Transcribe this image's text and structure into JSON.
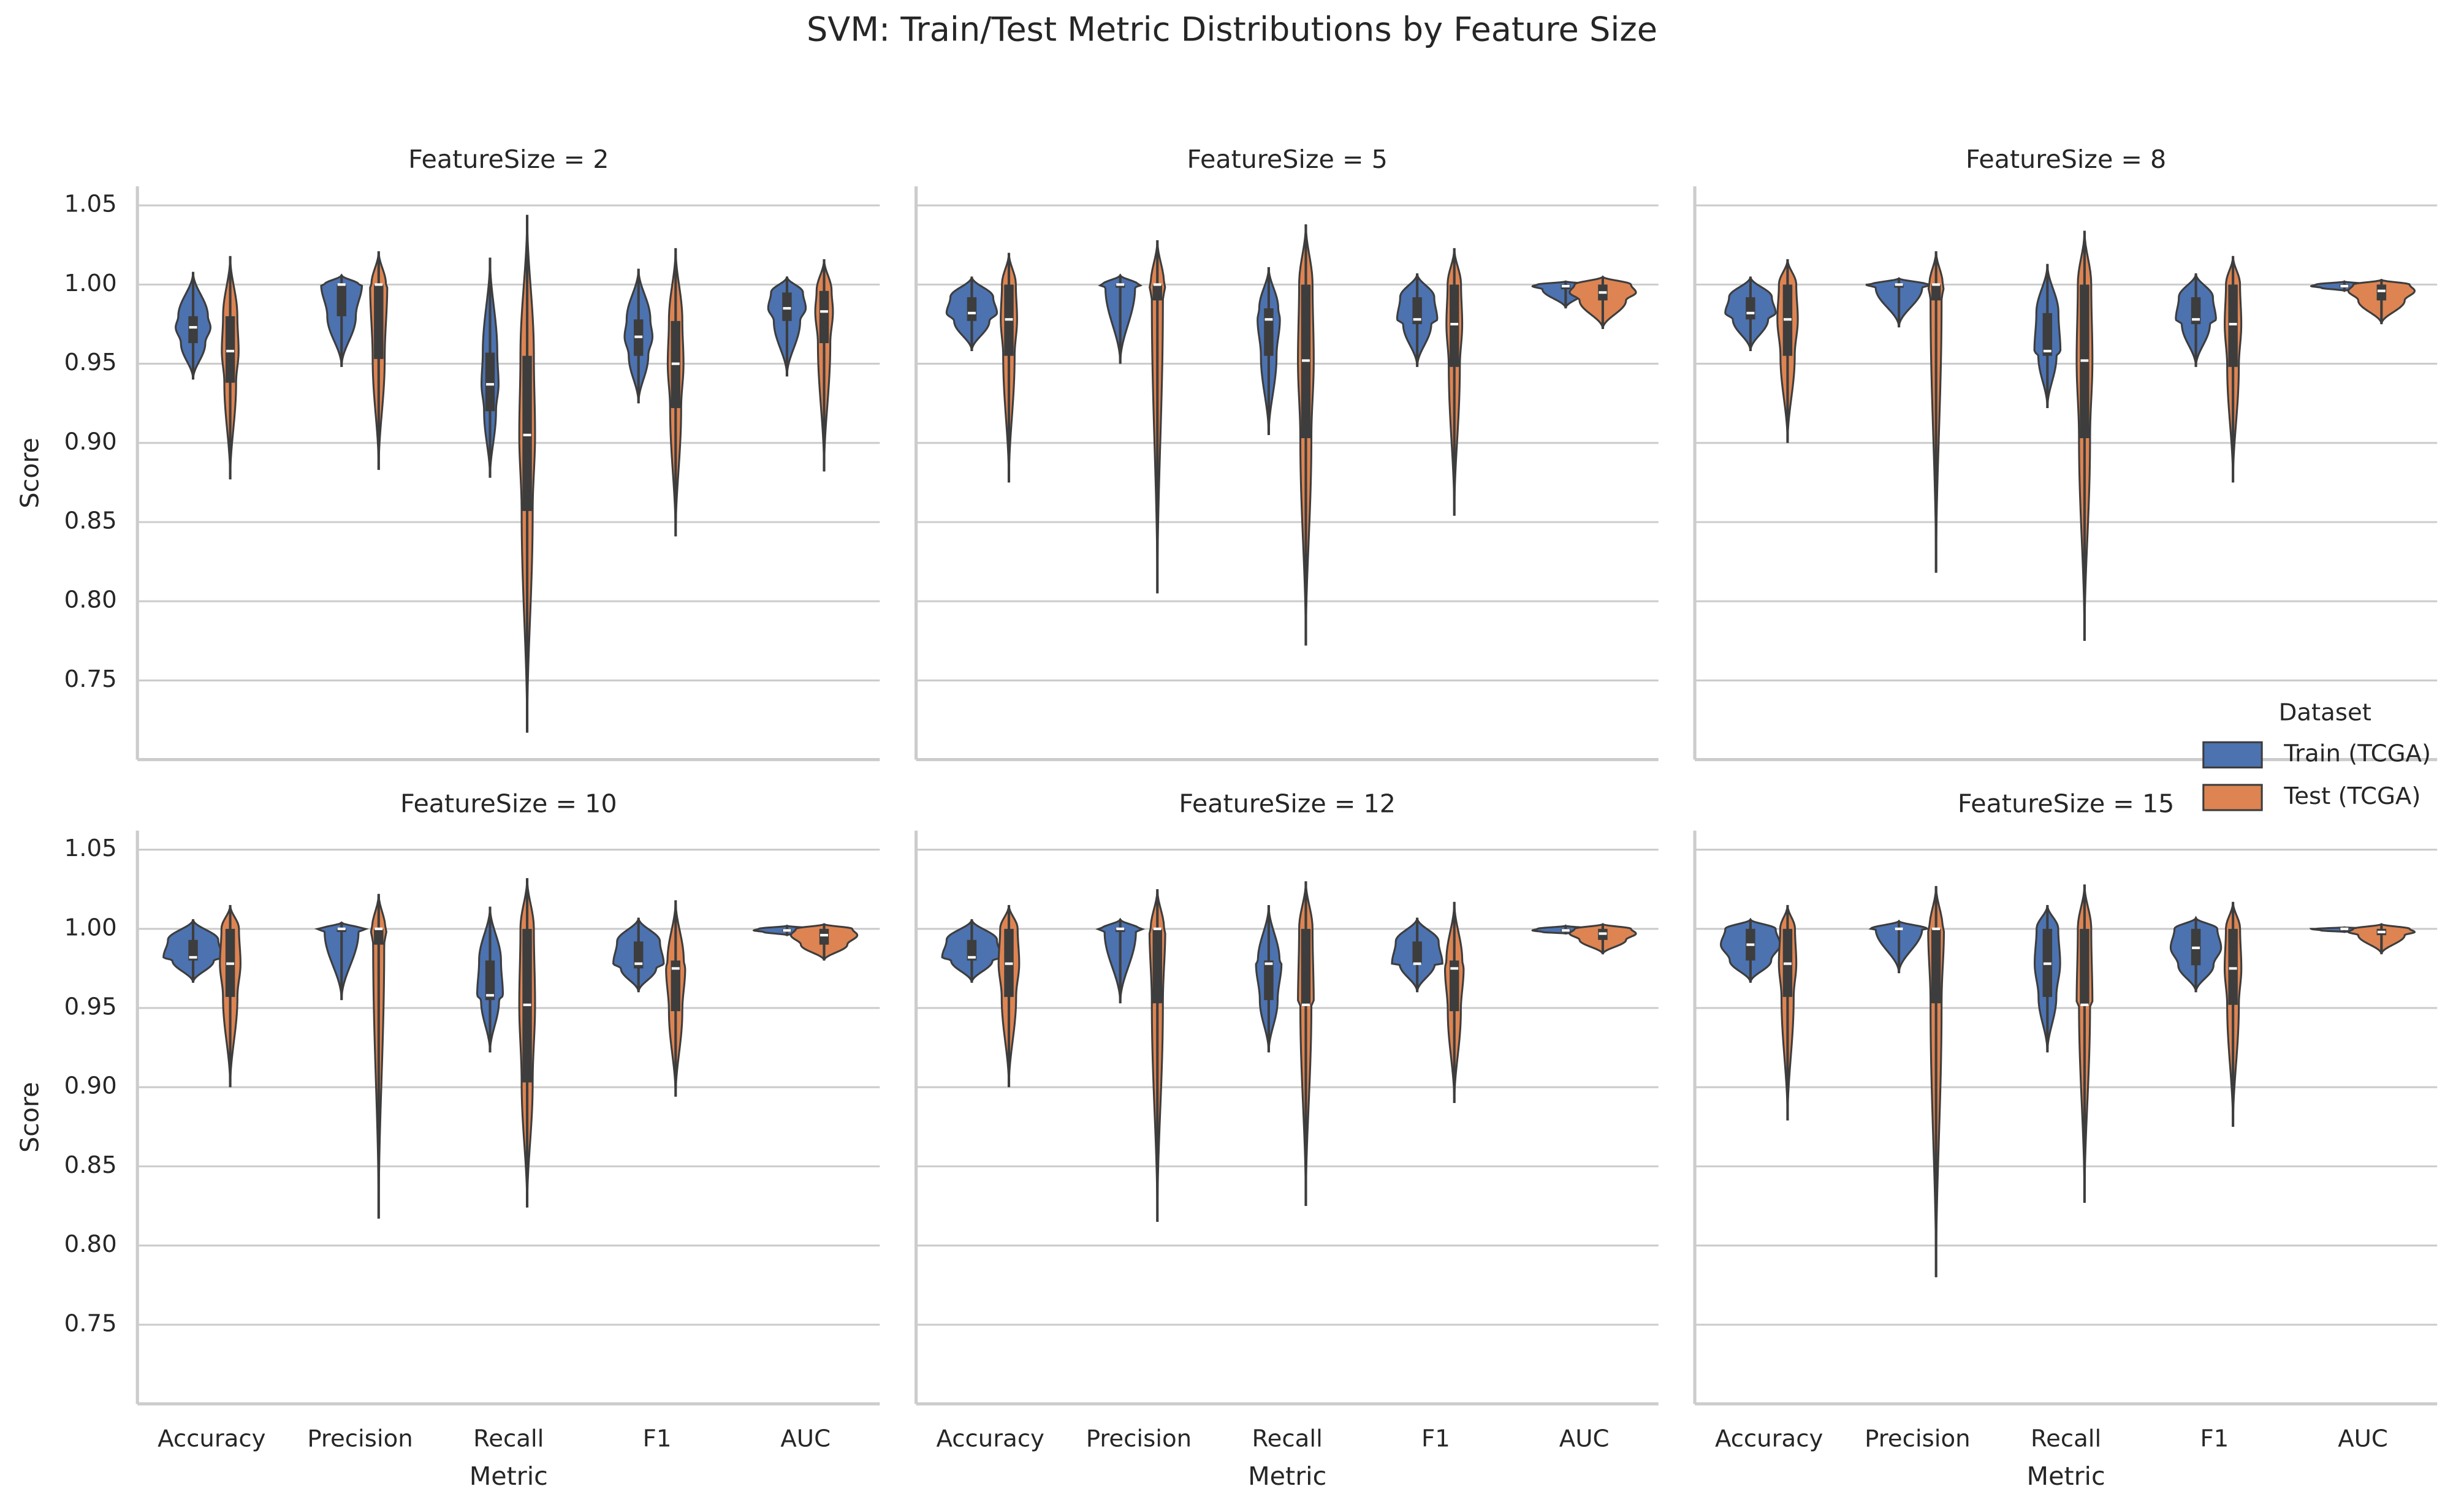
{
  "title": "SVM: Train/Test Metric Distributions by Feature Size",
  "legend_title": "Dataset",
  "chart_data": [
    {
      "type": "violin",
      "title": "FeatureSize = 2",
      "y_label": "Score",
      "ylim": [
        0.7,
        1.062
      ],
      "yticks": [
        {
          "value": 0.75,
          "label": "0.75"
        },
        {
          "value": 0.8,
          "label": "0.80"
        },
        {
          "value": 0.85,
          "label": "0.85"
        },
        {
          "value": 0.9,
          "label": "0.90"
        },
        {
          "value": 0.95,
          "label": "0.95"
        },
        {
          "value": 1.0,
          "label": "1.00"
        },
        {
          "value": 1.05,
          "label": "1.05"
        }
      ],
      "series": [
        {
          "name": "Train (TCGA)",
          "color": "#4c72b0",
          "values": [
            {
              "min": 0.94,
              "q1": 0.963,
              "median": 0.973,
              "q3": 0.98,
              "max": 1.008
            },
            {
              "min": 0.948,
              "q1": 0.98,
              "median": 1.0,
              "q3": 1.0,
              "max": 1.006
            },
            {
              "min": 0.878,
              "q1": 0.92,
              "median": 0.937,
              "q3": 0.957,
              "max": 1.017
            },
            {
              "min": 0.925,
              "q1": 0.955,
              "median": 0.967,
              "q3": 0.978,
              "max": 1.01
            },
            {
              "min": 0.942,
              "q1": 0.977,
              "median": 0.985,
              "q3": 0.995,
              "max": 1.005
            }
          ]
        },
        {
          "name": "Test (TCGA)",
          "color": "#dd8452",
          "values": [
            {
              "min": 0.877,
              "q1": 0.938,
              "median": 0.958,
              "q3": 0.98,
              "max": 1.018
            },
            {
              "min": 0.883,
              "q1": 0.953,
              "median": 1.0,
              "q3": 1.0,
              "max": 1.021
            },
            {
              "min": 0.717,
              "q1": 0.857,
              "median": 0.905,
              "q3": 0.955,
              "max": 1.044
            },
            {
              "min": 0.841,
              "q1": 0.922,
              "median": 0.95,
              "q3": 0.977,
              "max": 1.023
            },
            {
              "min": 0.882,
              "q1": 0.963,
              "median": 0.983,
              "q3": 0.996,
              "max": 1.016
            }
          ]
        }
      ]
    },
    {
      "type": "violin",
      "title": "FeatureSize = 5",
      "ylim": [
        0.7,
        1.062
      ],
      "yticks": [
        0.75,
        0.8,
        0.85,
        0.9,
        0.95,
        1.0,
        1.05
      ],
      "series": [
        {
          "name": "Train (TCGA)",
          "color": "#4c72b0",
          "values": [
            {
              "min": 0.958,
              "q1": 0.977,
              "median": 0.982,
              "q3": 0.992,
              "max": 1.005
            },
            {
              "min": 0.95,
              "q1": 0.998,
              "median": 1.0,
              "q3": 1.0,
              "max": 1.006
            },
            {
              "min": 0.905,
              "q1": 0.955,
              "median": 0.978,
              "q3": 0.985,
              "max": 1.011
            },
            {
              "min": 0.948,
              "q1": 0.975,
              "median": 0.978,
              "q3": 0.992,
              "max": 1.007
            },
            {
              "min": 0.985,
              "q1": 0.997,
              "median": 0.999,
              "q3": 1.0,
              "max": 1.002
            }
          ]
        },
        {
          "name": "Test (TCGA)",
          "color": "#dd8452",
          "values": [
            {
              "min": 0.875,
              "q1": 0.955,
              "median": 0.978,
              "q3": 1.0,
              "max": 1.02
            },
            {
              "min": 0.805,
              "q1": 0.99,
              "median": 1.0,
              "q3": 1.0,
              "max": 1.028
            },
            {
              "min": 0.772,
              "q1": 0.903,
              "median": 0.952,
              "q3": 1.0,
              "max": 1.038
            },
            {
              "min": 0.854,
              "q1": 0.948,
              "median": 0.975,
              "q3": 1.0,
              "max": 1.023
            },
            {
              "min": 0.972,
              "q1": 0.99,
              "median": 0.995,
              "q3": 1.0,
              "max": 1.005
            }
          ]
        }
      ]
    },
    {
      "type": "violin",
      "title": "FeatureSize = 8",
      "ylim": [
        0.7,
        1.062
      ],
      "yticks": [
        0.75,
        0.8,
        0.85,
        0.9,
        0.95,
        1.0,
        1.05
      ],
      "series": [
        {
          "name": "Train (TCGA)",
          "color": "#4c72b0",
          "values": [
            {
              "min": 0.958,
              "q1": 0.978,
              "median": 0.982,
              "q3": 0.992,
              "max": 1.005
            },
            {
              "min": 0.973,
              "q1": 0.998,
              "median": 1.0,
              "q3": 1.0,
              "max": 1.004
            },
            {
              "min": 0.922,
              "q1": 0.955,
              "median": 0.958,
              "q3": 0.982,
              "max": 1.013
            },
            {
              "min": 0.948,
              "q1": 0.975,
              "median": 0.978,
              "q3": 0.992,
              "max": 1.007
            },
            {
              "min": 0.996,
              "q1": 0.998,
              "median": 0.999,
              "q3": 1.0,
              "max": 1.002
            }
          ]
        },
        {
          "name": "Test (TCGA)",
          "color": "#dd8452",
          "values": [
            {
              "min": 0.9,
              "q1": 0.955,
              "median": 0.978,
              "q3": 1.0,
              "max": 1.016
            },
            {
              "min": 0.818,
              "q1": 0.99,
              "median": 1.0,
              "q3": 1.0,
              "max": 1.021
            },
            {
              "min": 0.775,
              "q1": 0.903,
              "median": 0.952,
              "q3": 1.0,
              "max": 1.034
            },
            {
              "min": 0.875,
              "q1": 0.948,
              "median": 0.975,
              "q3": 1.0,
              "max": 1.018
            },
            {
              "min": 0.975,
              "q1": 0.99,
              "median": 0.996,
              "q3": 1.0,
              "max": 1.003
            }
          ]
        }
      ]
    },
    {
      "type": "violin",
      "title": "FeatureSize = 10",
      "y_label": "Score",
      "x_label": "Metric",
      "ylim": [
        0.7,
        1.062
      ],
      "yticks": [
        {
          "value": 0.75,
          "label": "0.75"
        },
        {
          "value": 0.8,
          "label": "0.80"
        },
        {
          "value": 0.85,
          "label": "0.85"
        },
        {
          "value": 0.9,
          "label": "0.90"
        },
        {
          "value": 0.95,
          "label": "0.95"
        },
        {
          "value": 1.0,
          "label": "1.00"
        },
        {
          "value": 1.05,
          "label": "1.05"
        }
      ],
      "categories": [
        "Accuracy",
        "Precision",
        "Recall",
        "F1",
        "AUC"
      ],
      "series": [
        {
          "name": "Train (TCGA)",
          "color": "#4c72b0",
          "values": [
            {
              "min": 0.966,
              "q1": 0.98,
              "median": 0.982,
              "q3": 0.993,
              "max": 1.006
            },
            {
              "min": 0.955,
              "q1": 0.998,
              "median": 1.0,
              "q3": 1.0,
              "max": 1.004
            },
            {
              "min": 0.922,
              "q1": 0.955,
              "median": 0.958,
              "q3": 0.98,
              "max": 1.014
            },
            {
              "min": 0.96,
              "q1": 0.975,
              "median": 0.978,
              "q3": 0.992,
              "max": 1.007
            },
            {
              "min": 0.996,
              "q1": 0.998,
              "median": 0.999,
              "q3": 1.0,
              "max": 1.002
            }
          ]
        },
        {
          "name": "Test (TCGA)",
          "color": "#dd8452",
          "values": [
            {
              "min": 0.9,
              "q1": 0.957,
              "median": 0.978,
              "q3": 1.0,
              "max": 1.015
            },
            {
              "min": 0.817,
              "q1": 0.99,
              "median": 1.0,
              "q3": 1.0,
              "max": 1.022
            },
            {
              "min": 0.824,
              "q1": 0.903,
              "median": 0.952,
              "q3": 1.0,
              "max": 1.032
            },
            {
              "min": 0.894,
              "q1": 0.948,
              "median": 0.975,
              "q3": 0.98,
              "max": 1.018
            },
            {
              "min": 0.98,
              "q1": 0.99,
              "median": 0.996,
              "q3": 1.0,
              "max": 1.003
            }
          ]
        }
      ]
    },
    {
      "type": "violin",
      "title": "FeatureSize = 12",
      "x_label": "Metric",
      "ylim": [
        0.7,
        1.062
      ],
      "yticks": [
        0.75,
        0.8,
        0.85,
        0.9,
        0.95,
        1.0,
        1.05
      ],
      "categories": [
        "Accuracy",
        "Precision",
        "Recall",
        "F1",
        "AUC"
      ],
      "series": [
        {
          "name": "Train (TCGA)",
          "color": "#4c72b0",
          "values": [
            {
              "min": 0.966,
              "q1": 0.98,
              "median": 0.982,
              "q3": 0.993,
              "max": 1.006
            },
            {
              "min": 0.953,
              "q1": 0.998,
              "median": 1.0,
              "q3": 1.0,
              "max": 1.006
            },
            {
              "min": 0.922,
              "q1": 0.955,
              "median": 0.978,
              "q3": 0.98,
              "max": 1.015
            },
            {
              "min": 0.96,
              "q1": 0.978,
              "median": 0.978,
              "q3": 0.992,
              "max": 1.007
            },
            {
              "min": 0.997,
              "q1": 0.998,
              "median": 0.999,
              "q3": 1.0,
              "max": 1.002
            }
          ]
        },
        {
          "name": "Test (TCGA)",
          "color": "#dd8452",
          "values": [
            {
              "min": 0.9,
              "q1": 0.957,
              "median": 0.978,
              "q3": 1.0,
              "max": 1.015
            },
            {
              "min": 0.815,
              "q1": 0.953,
              "median": 1.0,
              "q3": 1.0,
              "max": 1.025
            },
            {
              "min": 0.825,
              "q1": 0.952,
              "median": 0.952,
              "q3": 1.0,
              "max": 1.03
            },
            {
              "min": 0.89,
              "q1": 0.948,
              "median": 0.975,
              "q3": 0.98,
              "max": 1.017
            },
            {
              "min": 0.984,
              "q1": 0.993,
              "median": 0.997,
              "q3": 1.0,
              "max": 1.003
            }
          ]
        }
      ]
    },
    {
      "type": "violin",
      "title": "FeatureSize = 15",
      "x_label": "Metric",
      "ylim": [
        0.7,
        1.062
      ],
      "yticks": [
        0.75,
        0.8,
        0.85,
        0.9,
        0.95,
        1.0,
        1.05
      ],
      "categories": [
        "Accuracy",
        "Precision",
        "Recall",
        "F1",
        "AUC"
      ],
      "series": [
        {
          "name": "Train (TCGA)",
          "color": "#4c72b0",
          "values": [
            {
              "min": 0.966,
              "q1": 0.98,
              "median": 0.99,
              "q3": 1.0,
              "max": 1.006
            },
            {
              "min": 0.972,
              "q1": 1.0,
              "median": 1.0,
              "q3": 1.0,
              "max": 1.005
            },
            {
              "min": 0.922,
              "q1": 0.957,
              "median": 0.978,
              "q3": 1.0,
              "max": 1.015
            },
            {
              "min": 0.96,
              "q1": 0.977,
              "median": 0.988,
              "q3": 1.0,
              "max": 1.007
            },
            {
              "min": 0.998,
              "q1": 0.999,
              "median": 1.0,
              "q3": 1.0,
              "max": 1.001
            }
          ]
        },
        {
          "name": "Test (TCGA)",
          "color": "#dd8452",
          "values": [
            {
              "min": 0.879,
              "q1": 0.957,
              "median": 0.978,
              "q3": 1.0,
              "max": 1.015
            },
            {
              "min": 0.78,
              "q1": 0.953,
              "median": 1.0,
              "q3": 1.0,
              "max": 1.027
            },
            {
              "min": 0.827,
              "q1": 0.952,
              "median": 0.952,
              "q3": 1.0,
              "max": 1.028
            },
            {
              "min": 0.875,
              "q1": 0.952,
              "median": 0.975,
              "q3": 1.0,
              "max": 1.017
            },
            {
              "min": 0.984,
              "q1": 0.996,
              "median": 0.998,
              "q3": 1.0,
              "max": 1.003
            }
          ]
        }
      ]
    }
  ]
}
